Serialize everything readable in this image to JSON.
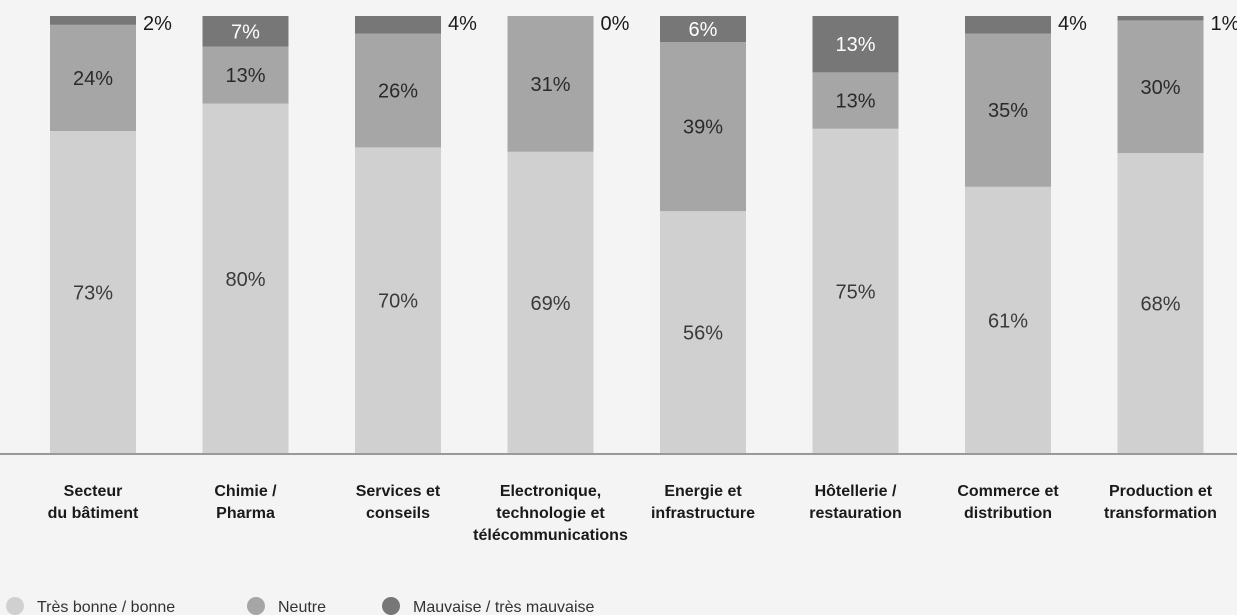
{
  "chart_data": {
    "type": "bar",
    "stacked": true,
    "normalized": true,
    "categories": [
      [
        "Secteur",
        "du bâtiment"
      ],
      [
        "Chimie /",
        "Pharma"
      ],
      [
        "Services et",
        "conseils"
      ],
      [
        "Electronique,",
        "technologie et",
        "télécommunications"
      ],
      [
        "Energie et",
        "infrastructure"
      ],
      [
        "Hôtellerie /",
        "restauration"
      ],
      [
        "Commerce et",
        "distribution"
      ],
      [
        "Production et",
        "transformation"
      ]
    ],
    "series": [
      {
        "name": "Très bonne / bonne",
        "color": "#d0d0d0",
        "label_color": "#3a3a3a",
        "values": [
          73,
          80,
          70,
          69,
          56,
          75,
          61,
          68
        ],
        "labels": [
          "73%",
          "80%",
          "70%",
          "69%",
          "56%",
          "75%",
          "61%",
          "68%"
        ]
      },
      {
        "name": "Neutre",
        "color": "#a6a6a6",
        "label_color": "#2a2a2a",
        "values": [
          24,
          13,
          26,
          31,
          39,
          13,
          35,
          30
        ],
        "labels": [
          "24%",
          "13%",
          "26%",
          "31%",
          "39%",
          "13%",
          "35%",
          "30%"
        ]
      },
      {
        "name": "Mauvaise / très mauvaise",
        "color": "#777777",
        "label_color": "#ffffff",
        "values": [
          2,
          7,
          4,
          0,
          6,
          13,
          4,
          1
        ],
        "labels": [
          "2%",
          "7%",
          "4%",
          "0%",
          "6%",
          "13%",
          "4%",
          "1%"
        ]
      }
    ],
    "ylim": [
      0,
      100
    ],
    "grid": false,
    "legend_position": "bottom-left",
    "title": "",
    "xlabel": "",
    "ylabel": ""
  }
}
